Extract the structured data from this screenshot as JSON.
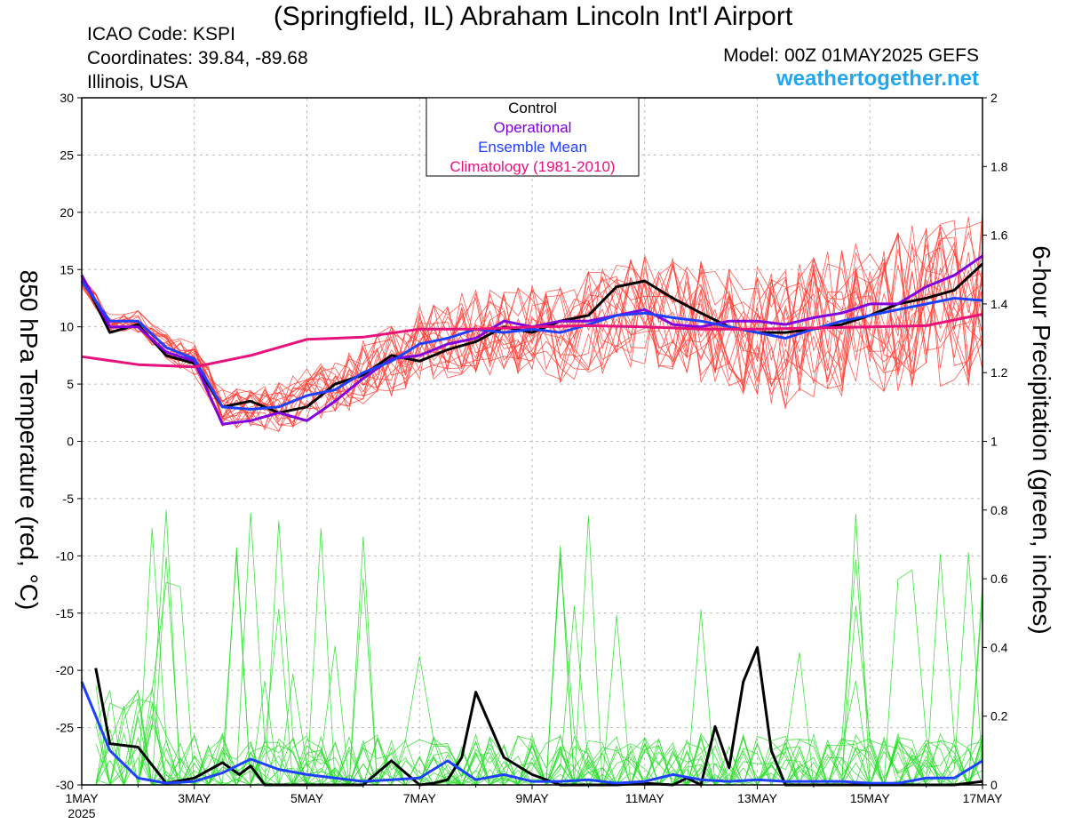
{
  "header": {
    "title": "(Springfield, IL) Abraham Lincoln Int'l Airport",
    "icao": "ICAO Code: KSPI",
    "coordinates": "Coordinates: 39.84, -89.68",
    "region": "Illinois, USA",
    "model": "Model: 00Z 01MAY2025 GEFS",
    "website": "weathertogether.net"
  },
  "colors": {
    "control": "#000000",
    "operational": "#8000e0",
    "ensemble_mean": "#2040ff",
    "climatology": "#e8127c",
    "members_temp": "#ff3b2f",
    "members_precip": "#22dd22",
    "website": "#22a6ee"
  },
  "chart_data": {
    "type": "line",
    "ylabel": "850 hPa Temperature (red, °C)",
    "y2label": "6-hour Precipitation (green, inches)",
    "xlim": [
      0,
      16
    ],
    "ylim": [
      -30,
      30
    ],
    "y2lim": [
      0,
      2
    ],
    "x_ticks": [
      {
        "x": 0,
        "label": "1MAY",
        "sub": "2025"
      },
      {
        "x": 2,
        "label": "3MAY"
      },
      {
        "x": 4,
        "label": "5MAY"
      },
      {
        "x": 6,
        "label": "7MAY"
      },
      {
        "x": 8,
        "label": "9MAY"
      },
      {
        "x": 10,
        "label": "11MAY"
      },
      {
        "x": 12,
        "label": "13MAY"
      },
      {
        "x": 14,
        "label": "15MAY"
      },
      {
        "x": 16,
        "label": "17MAY"
      }
    ],
    "y_ticks": [
      "30",
      "25",
      "20",
      "15",
      "10",
      "5",
      "0",
      "-5",
      "-10",
      "-15",
      "-20",
      "-25",
      "-30"
    ],
    "y2_ticks": [
      "2",
      "1.8",
      "1.6",
      "1.4",
      "1.2",
      "1",
      "0.8",
      "0.6",
      "0.4",
      "0.2",
      "0"
    ],
    "grid": true,
    "legend_position": "top-center",
    "legend": [
      {
        "name": "Control",
        "color": "#000000",
        "text_color": "#000000"
      },
      {
        "name": "Operational",
        "color": "#8000e0",
        "text_color": "#8000e0"
      },
      {
        "name": "Ensemble Mean",
        "color": "#2040ff",
        "text_color": "#2040ff"
      },
      {
        "name": "Climatology (1981-2010)",
        "color": "#e8127c",
        "text_color": "#e8127c"
      }
    ],
    "series": [
      {
        "name": "Control",
        "axis": "temp",
        "color": "#000000",
        "x": [
          0,
          0.5,
          1,
          1.5,
          2,
          2.5,
          3,
          3.5,
          4,
          4.5,
          5,
          5.5,
          6,
          6.5,
          7,
          7.5,
          8,
          8.5,
          9,
          9.5,
          10,
          10.5,
          11,
          11.5,
          12,
          12.5,
          13,
          13.5,
          14,
          14.5,
          15,
          15.5,
          16
        ],
        "y": [
          14.5,
          9.5,
          10.2,
          7.5,
          6.8,
          3,
          3.5,
          2.5,
          3,
          5,
          5.8,
          7.5,
          7,
          8,
          8.7,
          10,
          9.5,
          10.5,
          11,
          13.5,
          14,
          12.5,
          11.2,
          10,
          9.5,
          9.5,
          9.8,
          10.2,
          11,
          12,
          12.5,
          13.2,
          15.5
        ]
      },
      {
        "name": "Operational",
        "axis": "temp",
        "color": "#8000e0",
        "x": [
          0,
          0.5,
          1,
          1.5,
          2,
          2.5,
          3,
          3.5,
          4,
          4.5,
          5,
          5.5,
          6,
          6.5,
          7,
          7.5,
          8,
          8.5,
          9,
          9.5,
          10,
          10.5,
          11,
          11.5,
          12,
          12.5,
          13,
          13.5,
          14,
          14.5,
          15,
          15.5,
          16
        ],
        "y": [
          14.5,
          10,
          10,
          7.8,
          7,
          1.5,
          1.8,
          2.5,
          1.8,
          3.5,
          5.5,
          7.2,
          7.5,
          8.5,
          9,
          10.5,
          10,
          10.5,
          10.5,
          11,
          11.5,
          10.2,
          10,
          10.5,
          10.5,
          10.2,
          10.8,
          11.2,
          12,
          12,
          13.5,
          14.5,
          16.2
        ]
      },
      {
        "name": "Ensemble Mean",
        "axis": "temp",
        "color": "#2040ff",
        "x": [
          0,
          0.5,
          1,
          1.5,
          2,
          2.5,
          3,
          3.5,
          4,
          4.5,
          5,
          5.5,
          6,
          6.5,
          7,
          7.5,
          8,
          8.5,
          9,
          9.5,
          10,
          10.5,
          11,
          11.5,
          12,
          12.5,
          13,
          13.5,
          14,
          14.5,
          15,
          15.5,
          16
        ],
        "y": [
          14,
          10.5,
          10.5,
          8.2,
          7.2,
          3,
          2.8,
          3,
          4,
          4.5,
          6,
          7,
          8.5,
          9,
          9.8,
          9.5,
          9.8,
          9.5,
          10.2,
          11,
          11.2,
          10.8,
          10.5,
          10,
          9.5,
          9,
          9.8,
          10.5,
          11,
          11.5,
          12,
          12.5,
          12.3
        ]
      },
      {
        "name": "Climatology (1981-2010)",
        "axis": "temp",
        "color": "#e8127c",
        "x": [
          0,
          1,
          2,
          3,
          4,
          5,
          6,
          7,
          8,
          9,
          10,
          11,
          12,
          13,
          14,
          15,
          16
        ],
        "y": [
          7.4,
          6.7,
          6.5,
          7.5,
          8.9,
          9.1,
          9.8,
          9.8,
          10,
          10.1,
          10,
          9.8,
          9.8,
          9.9,
          10,
          10.1,
          11.1
        ]
      },
      {
        "name": "Control precip",
        "axis": "precip",
        "color": "#000000",
        "x": [
          0.25,
          0.5,
          1,
          1.5,
          2,
          2.5,
          2.8,
          3,
          3.25,
          3.5,
          4,
          4.5,
          5,
          5.5,
          6,
          6.25,
          6.5,
          6.75,
          7,
          7.5,
          8,
          8.5,
          9,
          9.5,
          10,
          10.5,
          10.75,
          11,
          11.25,
          11.5,
          11.75,
          12,
          12.25,
          12.5,
          13,
          13.5,
          14,
          14.5,
          15,
          15.5,
          16
        ],
        "y": [
          0.34,
          0.12,
          0.11,
          0.005,
          0.02,
          0.065,
          0.03,
          0.055,
          0,
          0,
          0,
          0,
          0,
          0.07,
          0,
          0.005,
          0.015,
          0.08,
          0.27,
          0.08,
          0.03,
          0,
          0,
          0,
          0.005,
          0,
          0.02,
          0,
          0.17,
          0.05,
          0.3,
          0.4,
          0.1,
          0,
          0,
          0,
          0,
          0,
          0,
          0,
          0.01
        ]
      },
      {
        "name": "Ensemble Mean precip",
        "axis": "precip",
        "color": "#2040ff",
        "x": [
          0,
          0.5,
          1,
          1.5,
          2,
          2.5,
          3,
          3.5,
          4,
          4.5,
          5,
          5.5,
          6,
          6.5,
          7,
          7.5,
          8,
          8.5,
          9,
          9.5,
          10,
          10.5,
          11,
          11.5,
          12,
          12.5,
          13,
          13.5,
          14,
          14.5,
          15,
          15.5,
          16
        ],
        "y": [
          0.3,
          0.1,
          0.02,
          0.005,
          0.01,
          0.035,
          0.075,
          0.045,
          0.03,
          0.02,
          0.01,
          0.015,
          0.02,
          0.07,
          0.015,
          0.03,
          0.01,
          0.01,
          0.015,
          0.005,
          0.01,
          0.03,
          0.015,
          0.01,
          0.015,
          0.01,
          0.01,
          0.01,
          0.005,
          0.005,
          0.02,
          0.02,
          0.07
        ]
      }
    ]
  }
}
